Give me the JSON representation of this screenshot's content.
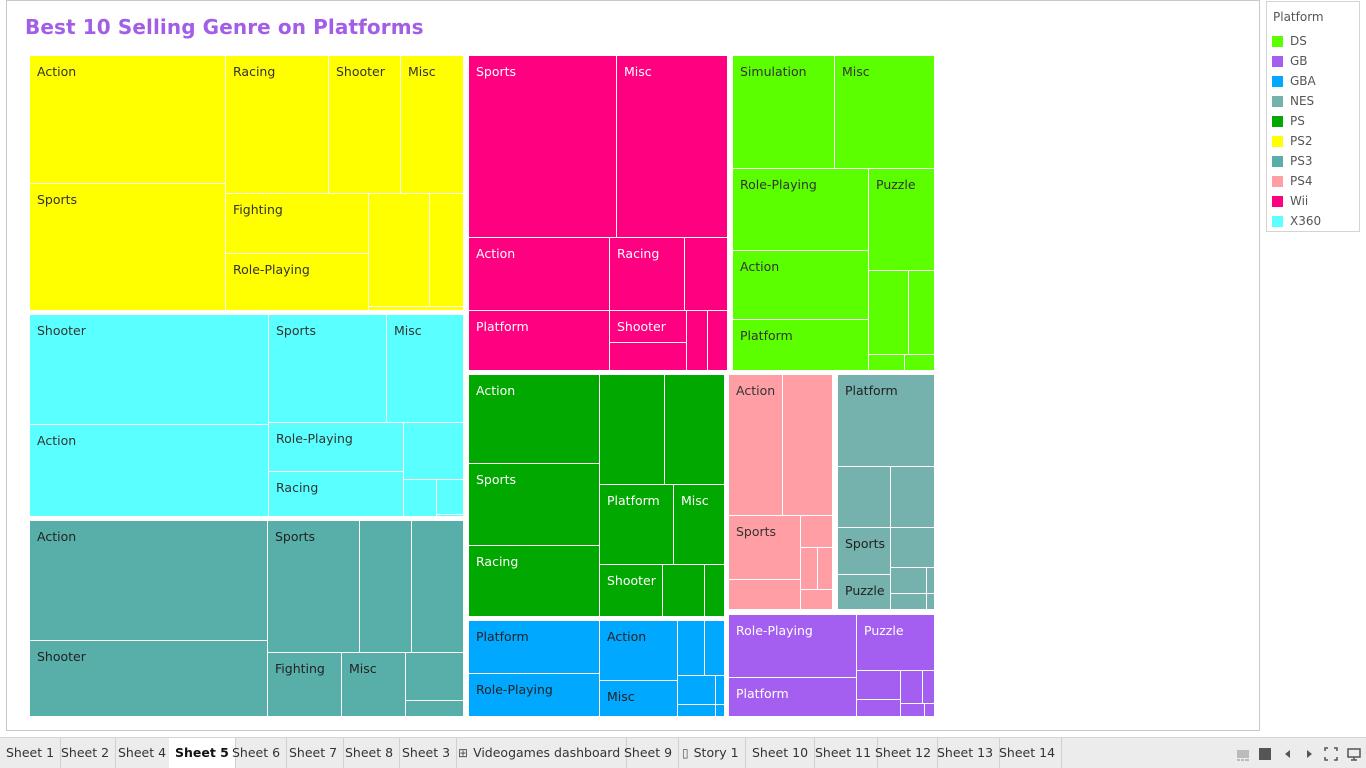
{
  "title": "Best 10 Selling Genre on Platforms",
  "legend": {
    "title": "Platform",
    "items": [
      {
        "label": "DS",
        "color": "#5bff00"
      },
      {
        "label": "GB",
        "color": "#a45ef0"
      },
      {
        "label": "GBA",
        "color": "#00a8ff"
      },
      {
        "label": "NES",
        "color": "#75b1ad"
      },
      {
        "label": "PS",
        "color": "#00a800"
      },
      {
        "label": "PS2",
        "color": "#ffff00"
      },
      {
        "label": "PS3",
        "color": "#58afaa"
      },
      {
        "label": "PS4",
        "color": "#ff9fa5"
      },
      {
        "label": "Wii",
        "color": "#ff0080"
      },
      {
        "label": "X360",
        "color": "#5affff"
      }
    ]
  },
  "chart_data": {
    "type": "treemap",
    "title": "Best 10 Selling Genre on Platforms",
    "legend_title": "Platform",
    "legend_position": "right",
    "platforms": [
      {
        "platform": "PS2",
        "color": "#ffff00",
        "genres": [
          "Action",
          "Sports",
          "Racing",
          "Shooter",
          "Misc",
          "Fighting",
          "Role-Playing"
        ]
      },
      {
        "platform": "X360",
        "color": "#5affff",
        "genres": [
          "Shooter",
          "Action",
          "Sports",
          "Misc",
          "Role-Playing",
          "Racing"
        ]
      },
      {
        "platform": "PS3",
        "color": "#58afaa",
        "genres": [
          "Action",
          "Shooter",
          "Sports",
          "Fighting",
          "Misc"
        ]
      },
      {
        "platform": "Wii",
        "color": "#ff0080",
        "genres": [
          "Sports",
          "Misc",
          "Action",
          "Racing",
          "Platform",
          "Shooter"
        ]
      },
      {
        "platform": "PS",
        "color": "#00a800",
        "genres": [
          "Action",
          "Sports",
          "Racing",
          "Platform",
          "Misc",
          "Shooter"
        ]
      },
      {
        "platform": "GBA",
        "color": "#00a8ff",
        "genres": [
          "Platform",
          "Role-Playing",
          "Action",
          "Misc"
        ]
      },
      {
        "platform": "DS",
        "color": "#5bff00",
        "genres": [
          "Simulation",
          "Misc",
          "Role-Playing",
          "Puzzle",
          "Action",
          "Platform"
        ]
      },
      {
        "platform": "PS4",
        "color": "#ff9fa5",
        "genres": [
          "Action",
          "Sports"
        ]
      },
      {
        "platform": "NES",
        "color": "#75b1ad",
        "genres": [
          "Platform",
          "Sports",
          "Puzzle"
        ]
      },
      {
        "platform": "GB",
        "color": "#a45ef0",
        "genres": [
          "Role-Playing",
          "Puzzle",
          "Platform"
        ]
      }
    ]
  },
  "tabs": [
    {
      "label": "Sheet 1",
      "active": false,
      "icon": ""
    },
    {
      "label": "Sheet 2",
      "active": false,
      "icon": ""
    },
    {
      "label": "Sheet 4",
      "active": false,
      "icon": ""
    },
    {
      "label": "Sheet 5",
      "active": true,
      "icon": ""
    },
    {
      "label": "Sheet 6",
      "active": false,
      "icon": ""
    },
    {
      "label": "Sheet 7",
      "active": false,
      "icon": ""
    },
    {
      "label": "Sheet 8",
      "active": false,
      "icon": ""
    },
    {
      "label": "Sheet 3",
      "active": false,
      "icon": ""
    },
    {
      "label": "Videogames dashboard",
      "active": false,
      "icon": "dashboard-icon"
    },
    {
      "label": "Sheet 9",
      "active": false,
      "icon": ""
    },
    {
      "label": "Story 1",
      "active": false,
      "icon": "story-icon"
    },
    {
      "label": "Sheet 10",
      "active": false,
      "icon": ""
    },
    {
      "label": "Sheet 11",
      "active": false,
      "icon": ""
    },
    {
      "label": "Sheet 12",
      "active": false,
      "icon": ""
    },
    {
      "label": "Sheet 13",
      "active": false,
      "icon": ""
    },
    {
      "label": "Sheet 14",
      "active": false,
      "icon": ""
    }
  ],
  "controls": [
    "filmstrip-icon",
    "grid-icon",
    "prev-arrow-icon",
    "next-arrow-icon",
    "fit-screen-icon",
    "presentation-icon"
  ]
}
